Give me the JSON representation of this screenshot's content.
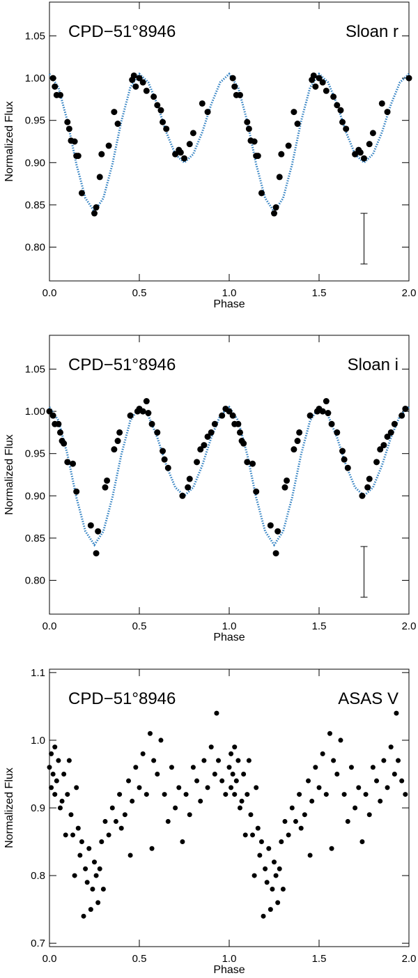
{
  "chart_data": [
    {
      "type": "scatter",
      "title": "CPD−51°8946",
      "annotation": "Sloan r",
      "xlabel": "Phase",
      "ylabel": "Normalized Flux",
      "color": "#000000",
      "xlim": [
        0,
        2
      ],
      "ylim": [
        0.76,
        1.09
      ],
      "xticks": [
        {
          "value": 0,
          "label": "0.0"
        },
        0.5,
        {
          "value": 1,
          "label": "1.0"
        },
        1.5,
        {
          "value": 2,
          "label": "2.0"
        }
      ],
      "yticks": [
        {
          "value": 0.8,
          "label": "0.80"
        },
        0.85,
        {
          "value": 0.9,
          "label": "0.90"
        },
        0.95,
        {
          "value": 1.0,
          "label": "1.00"
        },
        1.05
      ],
      "x": [
        0.02,
        0.03,
        0.04,
        0.06,
        0.1,
        0.11,
        0.12,
        0.14,
        0.15,
        0.16,
        0.18,
        0.25,
        0.26,
        0.28,
        0.29,
        0.33,
        0.36,
        0.38,
        0.46,
        0.47,
        0.48,
        0.5,
        0.52,
        0.54,
        0.58,
        0.6,
        0.62,
        0.63,
        0.65,
        0.7,
        0.72,
        0.73,
        0.75,
        0.78,
        0.8,
        0.85,
        0.88,
        1.02,
        1.03,
        1.04,
        1.06,
        1.1,
        1.11,
        1.12,
        1.14,
        1.15,
        1.16,
        1.18,
        1.25,
        1.26,
        1.28,
        1.29,
        1.33,
        1.36,
        1.38,
        1.46,
        1.47,
        1.48,
        1.5,
        1.52,
        1.54,
        1.58,
        1.6,
        1.62,
        1.63,
        1.65,
        1.7,
        1.72,
        1.73,
        1.75,
        1.78,
        1.8,
        1.85,
        1.88,
        2.0
      ],
      "values": [
        1.0,
        0.99,
        0.98,
        0.98,
        0.948,
        0.94,
        0.926,
        0.925,
        0.908,
        0.908,
        0.864,
        0.84,
        0.847,
        0.883,
        0.91,
        0.92,
        0.96,
        0.946,
        0.998,
        1.003,
        0.99,
        1.0,
        0.995,
        0.985,
        0.978,
        0.968,
        0.962,
        0.948,
        0.94,
        0.91,
        0.915,
        0.912,
        0.905,
        0.922,
        0.935,
        0.97,
        0.96,
        1.0,
        0.99,
        0.98,
        0.98,
        0.948,
        0.94,
        0.926,
        0.925,
        0.908,
        0.908,
        0.864,
        0.84,
        0.847,
        0.883,
        0.91,
        0.92,
        0.96,
        0.946,
        0.998,
        1.003,
        0.99,
        1.0,
        0.995,
        0.985,
        0.978,
        0.968,
        0.962,
        0.948,
        0.94,
        0.91,
        0.915,
        0.912,
        0.905,
        0.922,
        0.935,
        0.97,
        0.96,
        1.0
      ],
      "model": {
        "color": "#2e7fc1",
        "x": [
          0,
          0.05,
          0.1,
          0.15,
          0.2,
          0.25,
          0.3,
          0.35,
          0.4,
          0.45,
          0.5,
          0.55,
          0.6,
          0.65,
          0.7,
          0.75,
          0.8,
          0.85,
          0.9,
          0.95,
          1.0,
          1.05,
          1.1,
          1.15,
          1.2,
          1.25,
          1.3,
          1.35,
          1.4,
          1.45,
          1.5,
          1.55,
          1.6,
          1.65,
          1.7,
          1.75,
          1.8,
          1.85,
          1.9,
          1.95,
          2.0
        ],
        "values": [
          1.005,
          0.989,
          0.949,
          0.898,
          0.858,
          0.842,
          0.858,
          0.898,
          0.949,
          0.989,
          1.005,
          0.995,
          0.969,
          0.936,
          0.91,
          0.9,
          0.91,
          0.936,
          0.969,
          0.995,
          1.005,
          0.989,
          0.949,
          0.898,
          0.858,
          0.842,
          0.858,
          0.898,
          0.949,
          0.989,
          1.005,
          0.995,
          0.969,
          0.936,
          0.91,
          0.9,
          0.91,
          0.936,
          0.969,
          0.995,
          1.005
        ]
      },
      "error_bar": {
        "x": 1.75,
        "low": 0.78,
        "high": 0.84
      }
    },
    {
      "type": "scatter",
      "title": "CPD−51°8946",
      "annotation": "Sloan i",
      "xlabel": "Phase",
      "ylabel": "Normalized Flux",
      "color": "#000000",
      "xlim": [
        0,
        2
      ],
      "ylim": [
        0.76,
        1.09
      ],
      "xticks": [
        {
          "value": 0,
          "label": "0.0"
        },
        0.5,
        {
          "value": 1,
          "label": "1.0"
        },
        1.5,
        {
          "value": 2,
          "label": "2.0"
        }
      ],
      "yticks": [
        {
          "value": 0.8,
          "label": "0.80"
        },
        0.85,
        {
          "value": 0.9,
          "label": "0.90"
        },
        0.95,
        {
          "value": 1.0,
          "label": "1.00"
        },
        1.05
      ],
      "x": [
        0.0,
        0.02,
        0.03,
        0.05,
        0.06,
        0.07,
        0.08,
        0.1,
        0.13,
        0.15,
        0.23,
        0.26,
        0.27,
        0.31,
        0.32,
        0.36,
        0.38,
        0.39,
        0.45,
        0.49,
        0.5,
        0.52,
        0.54,
        0.55,
        0.57,
        0.6,
        0.63,
        0.64,
        0.66,
        0.74,
        0.77,
        0.78,
        0.82,
        0.84,
        0.86,
        0.88,
        0.9,
        0.92,
        0.96,
        0.98,
        1.0,
        1.02,
        1.03,
        1.05,
        1.06,
        1.07,
        1.08,
        1.1,
        1.13,
        1.15,
        1.23,
        1.26,
        1.27,
        1.31,
        1.32,
        1.36,
        1.38,
        1.39,
        1.45,
        1.49,
        1.5,
        1.52,
        1.54,
        1.55,
        1.57,
        1.6,
        1.63,
        1.64,
        1.66,
        1.74,
        1.77,
        1.78,
        1.82,
        1.84,
        1.86,
        1.88,
        1.9,
        1.92,
        1.96,
        1.98
      ],
      "values": [
        1.0,
        0.995,
        0.985,
        0.985,
        0.975,
        0.965,
        0.962,
        0.94,
        0.938,
        0.905,
        0.865,
        0.832,
        0.858,
        0.91,
        0.918,
        0.955,
        0.965,
        0.975,
        0.995,
        1.0,
        1.003,
        1.0,
        1.012,
        0.998,
        0.985,
        0.975,
        0.953,
        0.943,
        0.933,
        0.9,
        0.91,
        0.92,
        0.94,
        0.955,
        0.96,
        0.97,
        0.975,
        0.985,
        0.995,
        1.003,
        1.0,
        0.995,
        0.985,
        0.985,
        0.975,
        0.965,
        0.962,
        0.94,
        0.938,
        0.905,
        0.865,
        0.832,
        0.858,
        0.91,
        0.918,
        0.955,
        0.965,
        0.975,
        0.995,
        1.0,
        1.003,
        1.0,
        1.012,
        0.998,
        0.985,
        0.975,
        0.953,
        0.943,
        0.933,
        0.9,
        0.91,
        0.92,
        0.94,
        0.955,
        0.96,
        0.97,
        0.975,
        0.985,
        0.995,
        1.003
      ],
      "model": {
        "color": "#2e7fc1",
        "x": [
          0,
          0.05,
          0.1,
          0.15,
          0.2,
          0.25,
          0.3,
          0.35,
          0.4,
          0.45,
          0.5,
          0.55,
          0.6,
          0.65,
          0.7,
          0.75,
          0.8,
          0.85,
          0.9,
          0.95,
          1.0,
          1.05,
          1.1,
          1.15,
          1.2,
          1.25,
          1.3,
          1.35,
          1.4,
          1.45,
          1.5,
          1.55,
          1.6,
          1.65,
          1.7,
          1.75,
          1.8,
          1.85,
          1.9,
          1.95,
          2.0
        ],
        "values": [
          1.005,
          0.989,
          0.949,
          0.898,
          0.858,
          0.842,
          0.858,
          0.898,
          0.949,
          0.989,
          1.005,
          0.995,
          0.969,
          0.936,
          0.91,
          0.9,
          0.91,
          0.936,
          0.969,
          0.995,
          1.005,
          0.989,
          0.949,
          0.898,
          0.858,
          0.842,
          0.858,
          0.898,
          0.949,
          0.989,
          1.005,
          0.995,
          0.969,
          0.936,
          0.91,
          0.9,
          0.91,
          0.936,
          0.969,
          0.995,
          1.005
        ]
      },
      "error_bar": {
        "x": 1.75,
        "low": 0.78,
        "high": 0.84
      }
    },
    {
      "type": "scatter",
      "title": "CPD−51°8946",
      "annotation": "ASAS V",
      "xlabel": "Phase",
      "ylabel": "Normalized Flux",
      "color": "#000000",
      "xlim": [
        0,
        2
      ],
      "ylim": [
        0.695,
        1.105
      ],
      "xticks": [
        {
          "value": 0,
          "label": "0.0"
        },
        0.5,
        {
          "value": 1,
          "label": "1.0"
        },
        1.5,
        {
          "value": 2,
          "label": "2.0"
        }
      ],
      "yticks": [
        0.7,
        0.8,
        0.9,
        {
          "value": 1.0,
          "label": "1.0"
        },
        1.1
      ],
      "x": [
        0.0,
        0.01,
        0.01,
        0.02,
        0.03,
        0.03,
        0.04,
        0.05,
        0.06,
        0.07,
        0.08,
        0.09,
        0.1,
        0.11,
        0.12,
        0.13,
        0.14,
        0.15,
        0.16,
        0.17,
        0.18,
        0.19,
        0.2,
        0.21,
        0.22,
        0.23,
        0.24,
        0.25,
        0.26,
        0.27,
        0.28,
        0.29,
        0.3,
        0.31,
        0.33,
        0.35,
        0.37,
        0.39,
        0.4,
        0.42,
        0.44,
        0.45,
        0.46,
        0.48,
        0.5,
        0.52,
        0.54,
        0.56,
        0.57,
        0.58,
        0.6,
        0.62,
        0.64,
        0.66,
        0.68,
        0.7,
        0.72,
        0.74,
        0.76,
        0.78,
        0.8,
        0.82,
        0.84,
        0.86,
        0.88,
        0.9,
        0.92,
        0.93,
        0.94,
        0.96,
        0.98,
        1.0,
        1.01,
        1.01,
        1.02,
        1.03,
        1.03,
        1.04,
        1.05,
        1.06,
        1.07,
        1.08,
        1.09,
        1.1,
        1.11,
        1.12,
        1.13,
        1.14,
        1.15,
        1.16,
        1.17,
        1.18,
        1.19,
        1.2,
        1.21,
        1.22,
        1.23,
        1.24,
        1.25,
        1.26,
        1.27,
        1.28,
        1.29,
        1.3,
        1.31,
        1.33,
        1.35,
        1.37,
        1.39,
        1.4,
        1.42,
        1.44,
        1.45,
        1.46,
        1.48,
        1.5,
        1.52,
        1.54,
        1.56,
        1.57,
        1.58,
        1.6,
        1.62,
        1.64,
        1.66,
        1.68,
        1.7,
        1.72,
        1.74,
        1.76,
        1.78,
        1.8,
        1.82,
        1.84,
        1.86,
        1.88,
        1.9,
        1.92,
        1.93,
        1.94,
        1.96,
        1.98
      ],
      "values": [
        0.96,
        0.93,
        0.98,
        0.95,
        0.92,
        0.99,
        0.94,
        0.97,
        0.9,
        0.91,
        0.95,
        0.86,
        0.92,
        0.97,
        0.89,
        0.86,
        0.8,
        0.93,
        0.87,
        0.83,
        0.85,
        0.74,
        0.81,
        0.79,
        0.84,
        0.75,
        0.78,
        0.82,
        0.8,
        0.76,
        0.81,
        0.85,
        0.78,
        0.88,
        0.86,
        0.9,
        0.88,
        0.92,
        0.87,
        0.89,
        0.94,
        0.83,
        0.91,
        0.96,
        0.93,
        0.98,
        0.92,
        1.01,
        0.84,
        0.97,
        0.95,
        1.0,
        0.92,
        0.88,
        0.96,
        0.9,
        0.93,
        0.85,
        0.92,
        0.89,
        0.96,
        0.94,
        0.91,
        0.97,
        0.93,
        0.99,
        0.95,
        1.04,
        0.97,
        0.94,
        0.92,
        0.96,
        0.93,
        0.98,
        0.95,
        0.92,
        0.99,
        0.94,
        0.97,
        0.9,
        0.91,
        0.95,
        0.86,
        0.92,
        0.97,
        0.89,
        0.86,
        0.8,
        0.93,
        0.87,
        0.83,
        0.85,
        0.74,
        0.81,
        0.79,
        0.84,
        0.75,
        0.78,
        0.82,
        0.8,
        0.76,
        0.81,
        0.85,
        0.78,
        0.88,
        0.86,
        0.9,
        0.88,
        0.92,
        0.87,
        0.89,
        0.94,
        0.83,
        0.91,
        0.96,
        0.93,
        0.98,
        0.92,
        1.01,
        0.84,
        0.97,
        0.95,
        1.0,
        0.92,
        0.88,
        0.96,
        0.9,
        0.93,
        0.85,
        0.92,
        0.89,
        0.96,
        0.94,
        0.91,
        0.97,
        0.93,
        0.99,
        0.95,
        1.04,
        0.97,
        0.94,
        0.92
      ]
    }
  ]
}
